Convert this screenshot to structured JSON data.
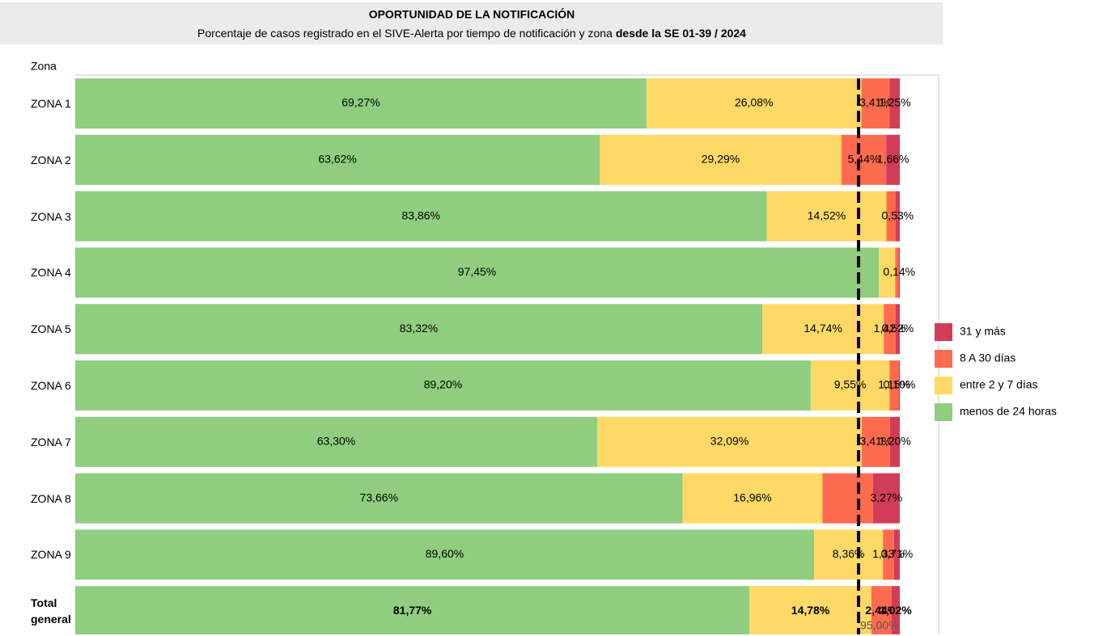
{
  "chart_data": {
    "type": "stacked_barh",
    "title": "OPORTUNIDAD DE LA NOTIFICACIÓN",
    "subtitle": [
      "Porcentaje de casos registrado en el SIVE-Alerta por tiempo de notificación y zona",
      "desde la SE 01-39 / 2024"
    ],
    "y_label": "Zona",
    "categories": [
      "ZONA 1",
      "ZONA 2",
      "ZONA 3",
      "ZONA 4",
      "ZONA 5",
      "ZONA 6",
      "ZONA 7",
      "ZONA 8",
      "ZONA 9",
      "Total general"
    ],
    "xlim": [
      0,
      100
    ],
    "series": [
      {
        "name": "menos de 24 horas",
        "color": "#8fce7e",
        "values": [
          69.27,
          63.62,
          83.86,
          97.45,
          83.32,
          89.2,
          63.3,
          73.66,
          89.6,
          81.77
        ],
        "value_labels": [
          "69,27%",
          "63,62%",
          "83,86%",
          "97,45%",
          "83,32%",
          "89,20%",
          "63,30%",
          "73,66%",
          "89,60%",
          "81,77%"
        ]
      },
      {
        "name": "entre 2 y 7 días",
        "color": "#ffd966",
        "values": [
          26.08,
          29.29,
          14.52,
          2.0,
          14.74,
          9.55,
          32.09,
          16.96,
          8.36,
          14.78
        ],
        "value_labels": [
          "26,08%",
          "29,29%",
          "14,52%",
          null,
          "14,74%",
          "9,55%",
          "32,09%",
          "16,96%",
          "8,36%",
          "14,78%"
        ]
      },
      {
        "name": "8 A 30 días",
        "color": "#ff6b4f",
        "values": [
          3.41,
          5.44,
          1.09,
          0.41,
          1.42,
          1.15,
          3.41,
          6.11,
          1.33,
          2.44
        ],
        "value_labels": [
          "3,41%",
          "5,44%",
          null,
          null,
          "1,42%",
          "1,15%",
          "3,41%",
          null,
          "1,33%",
          "2,44%"
        ]
      },
      {
        "name": "31 y más",
        "color": "#d13d58",
        "values": [
          1.25,
          1.66,
          0.53,
          0.14,
          0.52,
          0.1,
          1.2,
          3.27,
          0.71,
          1.02
        ],
        "value_labels": [
          "1,25%",
          "1,66%",
          "0,53%",
          "0,14%",
          "0,52%",
          "0,10%",
          "1,20%",
          "3,27%",
          "0,71%",
          "1,02%"
        ]
      }
    ],
    "reference_line": {
      "value": 95,
      "label": "95,00%",
      "color": "#000000"
    }
  }
}
